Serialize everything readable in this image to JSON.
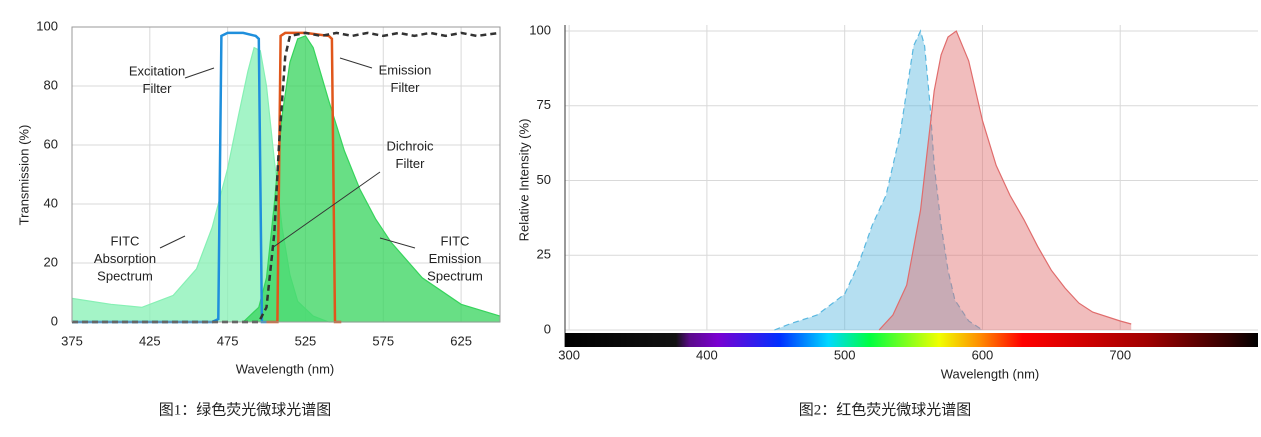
{
  "chart_data": [
    {
      "type": "line",
      "x_label": "Wavelength (nm)",
      "y_label": "Transmission (%)",
      "caption": "图1：绿色荧光微球光谱图",
      "xlim": [
        375,
        650
      ],
      "xticks": [
        375,
        425,
        475,
        525,
        575,
        625
      ],
      "ylim": [
        0,
        100
      ],
      "yticks": [
        0,
        20,
        40,
        60,
        80,
        100
      ],
      "grid": true,
      "series": [
        {
          "color": "#86f0b4",
          "fill": true,
          "dash": false,
          "x": [
            375,
            400,
            420,
            440,
            455,
            465,
            475,
            482,
            488,
            492,
            496,
            500,
            505,
            510,
            515,
            520,
            530,
            540,
            650
          ],
          "values": [
            8,
            6,
            5,
            9,
            18,
            32,
            52,
            70,
            85,
            93,
            92,
            80,
            55,
            32,
            16,
            7,
            2,
            0,
            0
          ]
        },
        {
          "color": "#36d45c",
          "fill": true,
          "dash": false,
          "x": [
            485,
            495,
            500,
            505,
            510,
            515,
            520,
            525,
            530,
            540,
            550,
            560,
            570,
            580,
            600,
            625,
            650
          ],
          "values": [
            0,
            5,
            15,
            40,
            70,
            88,
            96,
            97,
            93,
            75,
            58,
            45,
            35,
            27,
            15,
            6,
            2
          ]
        },
        {
          "color": "#1f8fdc",
          "fill": false,
          "dash": false,
          "x": [
            375,
            465,
            469,
            471,
            475,
            485,
            493,
            495,
            497,
            500
          ],
          "values": [
            0,
            0,
            1,
            97,
            98,
            98,
            97,
            96,
            0,
            0
          ]
        },
        {
          "color": "#e0561b",
          "fill": false,
          "dash": false,
          "x": [
            500,
            507,
            509,
            512,
            525,
            540,
            542,
            544,
            548
          ],
          "values": [
            0,
            0,
            97,
            98,
            98,
            97,
            96,
            0,
            0
          ]
        },
        {
          "color": "#333333",
          "fill": false,
          "dash": true,
          "x": [
            375,
            495,
            500,
            505,
            508,
            512,
            515,
            525,
            535,
            545,
            555,
            565,
            575,
            585,
            595,
            605,
            615,
            625,
            635,
            650
          ],
          "values": [
            0,
            0,
            5,
            30,
            60,
            90,
            97,
            98,
            97,
            98,
            97,
            98,
            97,
            98,
            97,
            98,
            97,
            98,
            97,
            98
          ]
        }
      ],
      "annotations": [
        {
          "lines": [
            "Excitation",
            "Filter"
          ]
        },
        {
          "lines": [
            "Emission",
            "Filter"
          ]
        },
        {
          "lines": [
            "Dichroic",
            "Filter"
          ]
        },
        {
          "lines": [
            "FITC",
            "Absorption",
            "Spectrum"
          ]
        },
        {
          "lines": [
            "FITC",
            "Emission",
            "Spectrum"
          ]
        }
      ]
    },
    {
      "type": "line",
      "x_label": "Wavelength (nm)",
      "y_label": "Relative Intensity (%)",
      "caption": "图2：红色荧光微球光谱图",
      "xlim": [
        297,
        800
      ],
      "xticks": [
        300,
        400,
        500,
        600,
        700
      ],
      "ylim": [
        0,
        102
      ],
      "yticks": [
        0,
        25,
        50,
        75,
        100
      ],
      "grid": true,
      "series": [
        {
          "color": "#5ab8e0",
          "fill": true,
          "dash": true,
          "x": [
            449,
            460,
            480,
            500,
            510,
            520,
            530,
            540,
            545,
            550,
            555,
            558,
            562,
            565,
            570,
            575,
            580,
            590,
            600
          ],
          "values": [
            0,
            2,
            5,
            12,
            22,
            35,
            45,
            65,
            80,
            95,
            100,
            95,
            75,
            55,
            35,
            20,
            10,
            3,
            0
          ]
        },
        {
          "color": "#e06c6c",
          "fill": true,
          "dash": false,
          "x": [
            525,
            535,
            545,
            555,
            560,
            565,
            570,
            575,
            581,
            590,
            600,
            610,
            620,
            630,
            640,
            650,
            660,
            670,
            680,
            700,
            708
          ],
          "values": [
            0,
            5,
            15,
            40,
            60,
            80,
            92,
            98,
            100,
            90,
            70,
            55,
            45,
            37,
            28,
            20,
            14,
            9,
            6,
            3,
            2
          ]
        }
      ]
    }
  ]
}
